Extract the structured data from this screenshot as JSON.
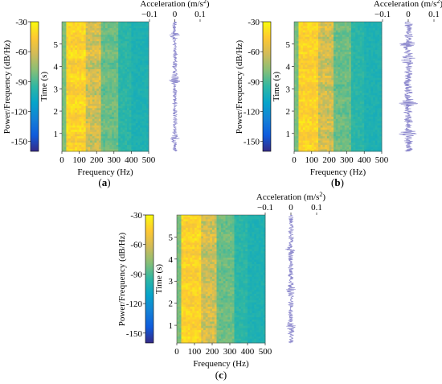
{
  "panels": [
    {
      "caption": "a",
      "wave_spikes": [
        [
          0.8,
          1.6
        ],
        [
          3.4,
          2.2
        ],
        [
          5.4,
          1.2
        ]
      ],
      "amp": 0.01
    },
    {
      "caption": "b",
      "wave_spikes": [
        [
          1.0,
          1.3
        ],
        [
          2.4,
          1.4
        ],
        [
          4.3,
          1.3
        ],
        [
          5.0,
          1.2
        ]
      ],
      "amp": 0.018
    },
    {
      "caption": "c",
      "wave_spikes": [
        [
          0.9,
          1.4
        ],
        [
          2.6,
          1.5
        ],
        [
          4.4,
          1.3
        ]
      ],
      "amp": 0.011
    }
  ],
  "colorbar": {
    "label": "Power/Frequency (dB/Hz)",
    "ticks": [
      "-30",
      "-60",
      "-90",
      "-120",
      "-150"
    ],
    "range": [
      -160,
      -30
    ],
    "stops": [
      "#352a87",
      "#0f5cdd",
      "#1481d6",
      "#06a4ca",
      "#2eb7a4",
      "#87bf77",
      "#d1bb59",
      "#fec832",
      "#f9fb0e"
    ]
  },
  "axes": {
    "xlabel": "Frequency (Hz)",
    "ylabel": "Time (s)",
    "x_ticks": [
      "0",
      "100",
      "200",
      "300",
      "400",
      "500"
    ],
    "y_ticks": [
      "1",
      "2",
      "3",
      "4",
      "5"
    ],
    "accel_label": "Acceleration (m/s",
    "accel_sup": "2",
    "accel_close": ")",
    "accel_ticks": [
      "−0.1",
      "0",
      "0.1"
    ]
  },
  "chart_data": [
    {
      "type": "heatmap",
      "title": "(a)",
      "xlabel": "Frequency (Hz)",
      "ylabel": "Time (s)",
      "xlim": [
        0,
        500
      ],
      "ylim": [
        0.2,
        6.0
      ],
      "colorbar_range_db": [
        -160,
        -30
      ],
      "waveform": {
        "xlabel": "Acceleration (m/s2)",
        "xlim": [
          -0.1,
          0.1
        ]
      }
    },
    {
      "type": "heatmap",
      "title": "(b)",
      "xlabel": "Frequency (Hz)",
      "ylabel": "Time (s)",
      "xlim": [
        0,
        500
      ],
      "ylim": [
        0.2,
        6.0
      ],
      "colorbar_range_db": [
        -160,
        -30
      ],
      "waveform": {
        "xlabel": "Acceleration (m/s2)",
        "xlim": [
          -0.1,
          0.1
        ]
      }
    },
    {
      "type": "heatmap",
      "title": "(c)",
      "xlabel": "Frequency (Hz)",
      "ylabel": "Time (s)",
      "xlim": [
        0,
        500
      ],
      "ylim": [
        0.2,
        6.0
      ],
      "colorbar_range_db": [
        -160,
        -30
      ],
      "waveform": {
        "xlabel": "Acceleration (m/s2)",
        "xlim": [
          -0.1,
          0.1
        ]
      }
    }
  ]
}
